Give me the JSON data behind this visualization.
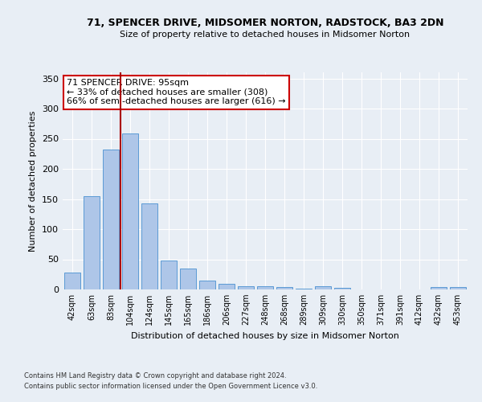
{
  "title": "71, SPENCER DRIVE, MIDSOMER NORTON, RADSTOCK, BA3 2DN",
  "subtitle": "Size of property relative to detached houses in Midsomer Norton",
  "xlabel": "Distribution of detached houses by size in Midsomer Norton",
  "ylabel": "Number of detached properties",
  "footnote1": "Contains HM Land Registry data © Crown copyright and database right 2024.",
  "footnote2": "Contains public sector information licensed under the Open Government Licence v3.0.",
  "categories": [
    "42sqm",
    "63sqm",
    "83sqm",
    "104sqm",
    "124sqm",
    "145sqm",
    "165sqm",
    "186sqm",
    "206sqm",
    "227sqm",
    "248sqm",
    "268sqm",
    "289sqm",
    "309sqm",
    "330sqm",
    "350sqm",
    "371sqm",
    "391sqm",
    "412sqm",
    "432sqm",
    "453sqm"
  ],
  "values": [
    28,
    155,
    232,
    259,
    143,
    48,
    35,
    15,
    9,
    6,
    5,
    4,
    1,
    5,
    3,
    0,
    0,
    0,
    0,
    4,
    4
  ],
  "bar_color": "#aec6e8",
  "bar_edge_color": "#5b9bd5",
  "bg_color": "#e8eef5",
  "grid_color": "#d0d8e8",
  "annotation_text1": "71 SPENCER DRIVE: 95sqm",
  "annotation_text2": "← 33% of detached houses are smaller (308)",
  "annotation_text3": "66% of semi-detached houses are larger (616) →",
  "annotation_box_color": "#ffffff",
  "annotation_border_color": "#cc0000",
  "marker_line_color": "#aa0000",
  "ylim": [
    0,
    360
  ],
  "yticks": [
    0,
    50,
    100,
    150,
    200,
    250,
    300,
    350
  ]
}
